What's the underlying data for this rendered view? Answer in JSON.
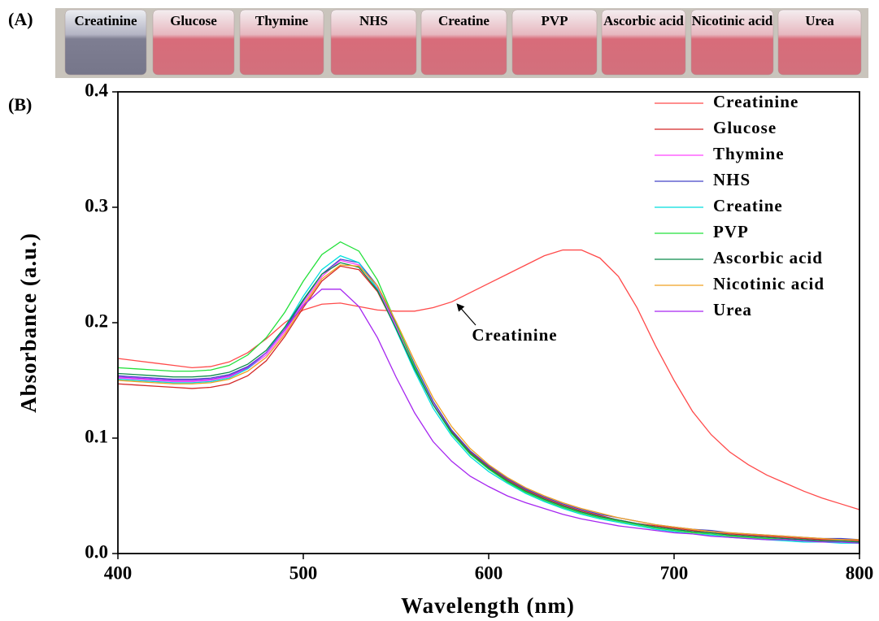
{
  "panel_a": {
    "label": "(A)",
    "samples": [
      "Creatinine",
      "Glucose",
      "Thymine",
      "NHS",
      "Creatine",
      "PVP",
      "Ascorbic acid",
      "Nicotinic acid",
      "Urea"
    ]
  },
  "chart_data": {
    "type": "line",
    "panel_label": "(B)",
    "x_label": "Wavelength (nm)",
    "y_label": "Absorbance (a.u.)",
    "annotation": "Creatinine",
    "x": [
      400,
      410,
      420,
      430,
      440,
      450,
      460,
      470,
      480,
      490,
      500,
      510,
      520,
      530,
      540,
      550,
      560,
      570,
      580,
      590,
      600,
      610,
      620,
      630,
      640,
      650,
      660,
      670,
      680,
      690,
      700,
      710,
      720,
      730,
      740,
      750,
      760,
      770,
      780,
      790,
      800
    ],
    "xlim": [
      400,
      800
    ],
    "xticks": [
      400,
      500,
      600,
      700,
      800
    ],
    "ylim": [
      0,
      0.4
    ],
    "yticks": [
      {
        "value": 0,
        "label": "0.0"
      },
      0.1,
      0.2,
      0.3,
      0.4
    ],
    "legend": "top-right",
    "series": [
      {
        "name": "Creatinine",
        "color": "#ff4a4a",
        "values": [
          0.169,
          0.167,
          0.165,
          0.163,
          0.161,
          0.162,
          0.166,
          0.174,
          0.186,
          0.2,
          0.211,
          0.216,
          0.217,
          0.214,
          0.211,
          0.21,
          0.21,
          0.213,
          0.218,
          0.226,
          0.234,
          0.242,
          0.25,
          0.258,
          0.263,
          0.263,
          0.256,
          0.24,
          0.213,
          0.18,
          0.15,
          0.123,
          0.103,
          0.088,
          0.077,
          0.068,
          0.061,
          0.054,
          0.048,
          0.043,
          0.038
        ]
      },
      {
        "name": "Glucose",
        "color": "#d42828",
        "values": [
          0.147,
          0.146,
          0.145,
          0.144,
          0.143,
          0.144,
          0.147,
          0.154,
          0.167,
          0.188,
          0.213,
          0.236,
          0.249,
          0.246,
          0.227,
          0.195,
          0.161,
          0.13,
          0.106,
          0.088,
          0.075,
          0.064,
          0.055,
          0.048,
          0.042,
          0.037,
          0.033,
          0.029,
          0.026,
          0.024,
          0.022,
          0.02,
          0.018,
          0.017,
          0.016,
          0.015,
          0.014,
          0.013,
          0.012,
          0.012,
          0.011
        ]
      },
      {
        "name": "Thymine",
        "color": "#ff44ff",
        "values": [
          0.152,
          0.151,
          0.15,
          0.149,
          0.149,
          0.15,
          0.153,
          0.16,
          0.172,
          0.192,
          0.217,
          0.24,
          0.254,
          0.25,
          0.23,
          0.197,
          0.162,
          0.13,
          0.105,
          0.087,
          0.074,
          0.063,
          0.054,
          0.047,
          0.041,
          0.036,
          0.032,
          0.029,
          0.026,
          0.023,
          0.021,
          0.019,
          0.018,
          0.016,
          0.015,
          0.014,
          0.013,
          0.012,
          0.011,
          0.01,
          0.01
        ]
      },
      {
        "name": "NHS",
        "color": "#4444c8",
        "values": [
          0.154,
          0.153,
          0.152,
          0.151,
          0.151,
          0.152,
          0.155,
          0.162,
          0.174,
          0.194,
          0.219,
          0.242,
          0.255,
          0.252,
          0.232,
          0.199,
          0.164,
          0.132,
          0.107,
          0.089,
          0.076,
          0.065,
          0.056,
          0.049,
          0.043,
          0.038,
          0.034,
          0.031,
          0.028,
          0.025,
          0.023,
          0.021,
          0.02,
          0.018,
          0.017,
          0.016,
          0.015,
          0.014,
          0.013,
          0.013,
          0.012
        ]
      },
      {
        "name": "Creatine",
        "color": "#00dede",
        "values": [
          0.151,
          0.15,
          0.149,
          0.148,
          0.148,
          0.149,
          0.152,
          0.16,
          0.174,
          0.196,
          0.223,
          0.246,
          0.258,
          0.252,
          0.229,
          0.194,
          0.158,
          0.126,
          0.102,
          0.084,
          0.071,
          0.061,
          0.052,
          0.045,
          0.039,
          0.034,
          0.03,
          0.027,
          0.024,
          0.021,
          0.019,
          0.017,
          0.016,
          0.014,
          0.013,
          0.012,
          0.011,
          0.01,
          0.01,
          0.009,
          0.009
        ]
      },
      {
        "name": "PVP",
        "color": "#22e03a",
        "values": [
          0.161,
          0.16,
          0.159,
          0.158,
          0.158,
          0.159,
          0.163,
          0.172,
          0.187,
          0.209,
          0.236,
          0.259,
          0.27,
          0.262,
          0.237,
          0.2,
          0.162,
          0.129,
          0.104,
          0.086,
          0.073,
          0.062,
          0.053,
          0.046,
          0.04,
          0.035,
          0.031,
          0.028,
          0.025,
          0.022,
          0.02,
          0.018,
          0.017,
          0.015,
          0.014,
          0.013,
          0.012,
          0.011,
          0.011,
          0.01,
          0.01
        ]
      },
      {
        "name": "Ascorbic acid",
        "color": "#0a8a4a",
        "values": [
          0.156,
          0.155,
          0.154,
          0.153,
          0.153,
          0.154,
          0.157,
          0.164,
          0.176,
          0.196,
          0.22,
          0.242,
          0.252,
          0.248,
          0.228,
          0.195,
          0.16,
          0.129,
          0.105,
          0.087,
          0.074,
          0.063,
          0.054,
          0.047,
          0.041,
          0.036,
          0.032,
          0.029,
          0.026,
          0.023,
          0.021,
          0.019,
          0.018,
          0.016,
          0.015,
          0.014,
          0.013,
          0.012,
          0.011,
          0.011,
          0.01
        ]
      },
      {
        "name": "Nicotinic acid",
        "color": "#f0a020",
        "values": [
          0.15,
          0.149,
          0.148,
          0.147,
          0.147,
          0.148,
          0.151,
          0.158,
          0.17,
          0.19,
          0.215,
          0.238,
          0.25,
          0.249,
          0.232,
          0.201,
          0.167,
          0.135,
          0.11,
          0.091,
          0.077,
          0.066,
          0.057,
          0.05,
          0.044,
          0.039,
          0.035,
          0.031,
          0.028,
          0.025,
          0.023,
          0.021,
          0.019,
          0.018,
          0.017,
          0.016,
          0.015,
          0.014,
          0.013,
          0.012,
          0.012
        ]
      },
      {
        "name": "Urea",
        "color": "#a626f0",
        "values": [
          0.153,
          0.152,
          0.151,
          0.15,
          0.15,
          0.151,
          0.154,
          0.161,
          0.174,
          0.194,
          0.215,
          0.229,
          0.229,
          0.214,
          0.187,
          0.153,
          0.122,
          0.097,
          0.08,
          0.067,
          0.058,
          0.05,
          0.044,
          0.039,
          0.034,
          0.03,
          0.027,
          0.024,
          0.022,
          0.02,
          0.018,
          0.017,
          0.015,
          0.014,
          0.013,
          0.012,
          0.012,
          0.011,
          0.01,
          0.01,
          0.009
        ]
      }
    ]
  }
}
